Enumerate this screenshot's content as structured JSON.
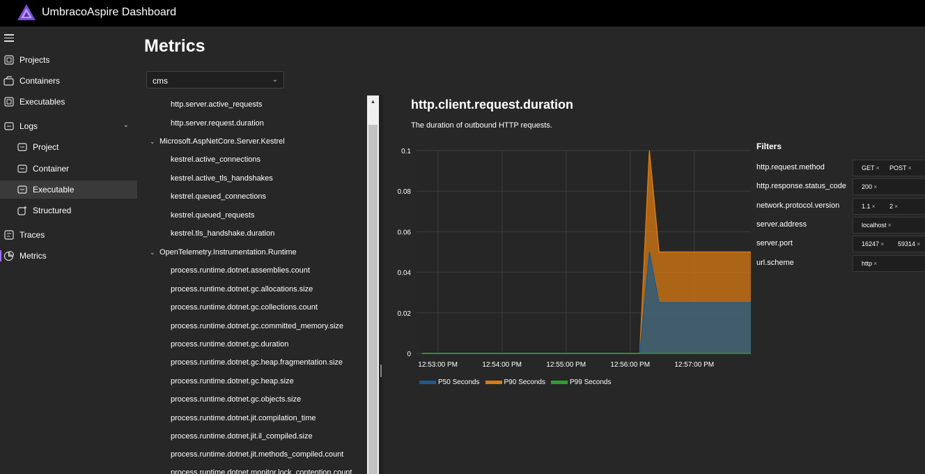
{
  "app": {
    "title": "UmbracoAspire Dashboard"
  },
  "sidebar": {
    "items": [
      {
        "label": "Projects",
        "icon": "projects-icon"
      },
      {
        "label": "Containers",
        "icon": "containers-icon"
      },
      {
        "label": "Executables",
        "icon": "executables-icon"
      },
      {
        "label": "Logs",
        "icon": "logs-icon",
        "expanded": true
      },
      {
        "label": "Project",
        "icon": "log-file-icon"
      },
      {
        "label": "Container",
        "icon": "log-file-icon"
      },
      {
        "label": "Executable",
        "icon": "log-file-icon",
        "selected": true
      },
      {
        "label": "Structured",
        "icon": "structured-log-icon"
      },
      {
        "label": "Traces",
        "icon": "traces-icon"
      },
      {
        "label": "Metrics",
        "icon": "metrics-icon",
        "current": true
      }
    ]
  },
  "page": {
    "title": "Metrics"
  },
  "resource_select": {
    "value": "cms"
  },
  "tree": {
    "items": [
      "http.server.active_requests",
      "http.server.request.duration",
      "Microsoft.AspNetCore.Server.Kestrel",
      "kestrel.active_connections",
      "kestrel.active_tls_handshakes",
      "kestrel.queued_connections",
      "kestrel.queued_requests",
      "kestrel.tls_handshake.duration",
      "OpenTelemetry.Instrumentation.Runtime",
      "process.runtime.dotnet.assemblies.count",
      "process.runtime.dotnet.gc.allocations.size",
      "process.runtime.dotnet.gc.collections.count",
      "process.runtime.dotnet.gc.committed_memory.size",
      "process.runtime.dotnet.gc.duration",
      "process.runtime.dotnet.gc.heap.fragmentation.size",
      "process.runtime.dotnet.gc.heap.size",
      "process.runtime.dotnet.gc.objects.size",
      "process.runtime.dotnet.jit.compilation_time",
      "process.runtime.dotnet.jit.il_compiled.size",
      "process.runtime.dotnet.jit.methods_compiled.count",
      "process.runtime.dotnet.monitor.lock_contention.count"
    ]
  },
  "metric": {
    "title": "http.client.request.duration",
    "description": "The duration of outbound HTTP requests."
  },
  "chart_data": {
    "type": "area",
    "title": "",
    "xlabel": "",
    "ylabel": "",
    "x_ticks": [
      "12:53:00 PM",
      "12:54:00 PM",
      "12:55:00 PM",
      "12:56:00 PM",
      "12:57:00 PM"
    ],
    "x": [
      "12:52:45 PM",
      "12:56:09 PM",
      "12:56:18 PM",
      "12:56:27 PM",
      "12:57:53 PM"
    ],
    "y_ticks": [
      "0",
      "0.02",
      "0.04",
      "0.06",
      "0.08",
      "0.1"
    ],
    "ylim": [
      0,
      0.1
    ],
    "grid": true,
    "legend_position": "bottom-left",
    "series": [
      {
        "name": "P50 Seconds",
        "color": "#1e5b8a",
        "values": [
          0,
          0,
          0.05,
          0.025,
          0.025
        ]
      },
      {
        "name": "P90 Seconds",
        "color": "#d97a13",
        "values": [
          0,
          0,
          0.1,
          0.05,
          0.05
        ]
      },
      {
        "name": "P99 Seconds",
        "color": "#2ca02c",
        "values": [
          0,
          0,
          0,
          0,
          0
        ]
      }
    ]
  },
  "filters": {
    "title": "Filters",
    "rows": [
      {
        "name": "http.request.method",
        "values": [
          "GET",
          "POST"
        ]
      },
      {
        "name": "http.response.status_code",
        "values": [
          "200"
        ]
      },
      {
        "name": "network.protocol.version",
        "values": [
          "1.1",
          "2"
        ]
      },
      {
        "name": "server.address",
        "values": [
          "localhost"
        ]
      },
      {
        "name": "server.port",
        "values": [
          "16247",
          "59314"
        ]
      },
      {
        "name": "url.scheme",
        "values": [
          "http"
        ]
      }
    ]
  }
}
